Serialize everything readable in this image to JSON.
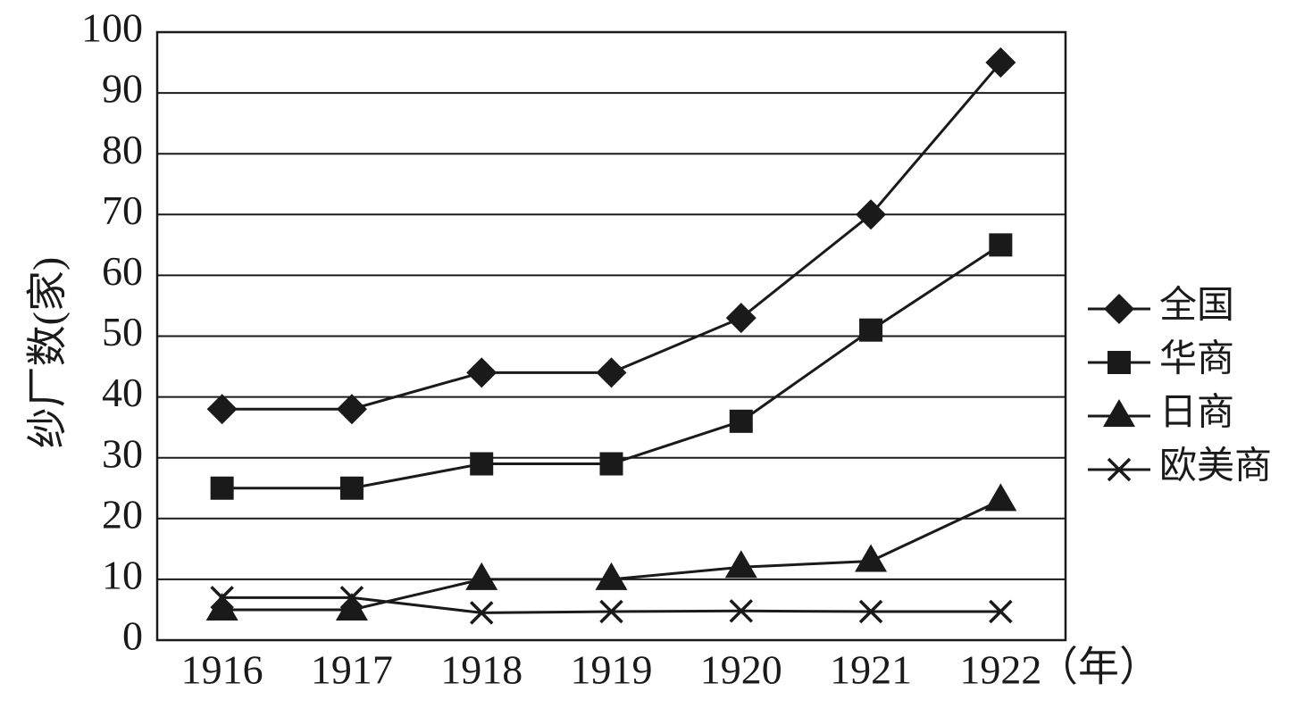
{
  "chart_data": {
    "type": "line",
    "y_label": "纱厂数(家)",
    "x_unit": "（年）",
    "categories": [
      "1916",
      "1917",
      "1918",
      "1919",
      "1920",
      "1921",
      "1922"
    ],
    "series": [
      {
        "name": "全国",
        "color": "#1a1a1a",
        "marker": "diamond",
        "values": [
          38,
          38,
          44,
          44,
          53,
          70,
          95
        ]
      },
      {
        "name": "华商",
        "color": "#1a1a1a",
        "marker": "square",
        "values": [
          25,
          25,
          29,
          29,
          36,
          51,
          65
        ]
      },
      {
        "name": "日商",
        "color": "#1a1a1a",
        "marker": "triangle",
        "values": [
          5,
          5,
          10,
          10,
          12,
          13,
          23
        ]
      },
      {
        "name": "欧美商",
        "color": "#1a1a1a",
        "marker": "x",
        "values": [
          7,
          7,
          4.5,
          4.7,
          4.8,
          4.7,
          4.7
        ]
      }
    ],
    "ylim": [
      0,
      100
    ],
    "yticks": [
      0,
      10,
      20,
      30,
      40,
      50,
      60,
      70,
      80,
      90,
      100
    ],
    "grid": true,
    "legend": "right"
  }
}
